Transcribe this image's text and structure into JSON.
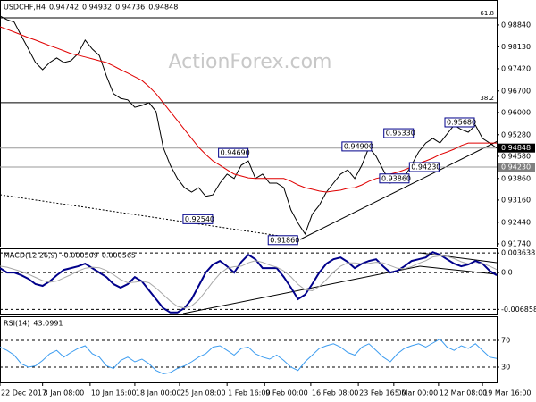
{
  "chart_data": [
    {
      "type": "line",
      "symbol": "USDCHF,H4",
      "header_values": [
        0.94742,
        0.94932,
        0.94736,
        0.94848
      ],
      "watermark": "ActionForex.com",
      "xlim": [
        0,
        70
      ],
      "ylim": [
        0.9168,
        0.9936
      ],
      "grid": false,
      "yticks": [
        {
          "value": 0.9884,
          "label": "0.98840"
        },
        {
          "value": 0.9813,
          "label": "0.98130"
        },
        {
          "value": 0.9742,
          "label": "0.97420"
        },
        {
          "value": 0.967,
          "label": "0.96700"
        },
        {
          "value": 0.96,
          "label": "0.96000"
        },
        {
          "value": 0.9528,
          "label": "0.95280"
        },
        {
          "value": 0.9458,
          "label": "0.94580"
        },
        {
          "value": 0.9386,
          "label": "0.93860"
        },
        {
          "value": 0.9316,
          "label": "0.93160"
        },
        {
          "value": 0.9244,
          "label": "0.92440"
        },
        {
          "value": 0.9174,
          "label": "0.91740"
        }
      ],
      "levels": [
        {
          "value": 0.9907,
          "label": "61.8"
        },
        {
          "value": 0.9632,
          "label": "38.2"
        }
      ],
      "price_markers": [
        {
          "value": 0.94848,
          "color": "#000000"
        },
        {
          "value": 0.9423,
          "label": "0.94230",
          "color": "#808080"
        }
      ],
      "annotations": [
        {
          "x": 25.8,
          "value": 0.9254,
          "label": "0.92540"
        },
        {
          "x": 30.8,
          "value": 0.9469,
          "label": "0.94690"
        },
        {
          "x": 37.8,
          "value": 0.9186,
          "label": "0.91860"
        },
        {
          "x": 48.2,
          "value": 0.949,
          "label": "0.94900"
        },
        {
          "x": 53.5,
          "value": 0.9386,
          "label": "0.93860"
        },
        {
          "x": 57.7,
          "value": 0.9423,
          "label": "0.94230"
        },
        {
          "x": 54.1,
          "value": 0.9533,
          "label": "0.95330"
        },
        {
          "x": 62.7,
          "value": 0.9568,
          "label": "0.95680"
        }
      ],
      "series": [
        {
          "color": "#000000",
          "width": 1,
          "values": [
            0.9913,
            0.9901,
            0.9893,
            0.9849,
            0.9806,
            0.9762,
            0.9739,
            0.9762,
            0.9777,
            0.9762,
            0.9768,
            0.9791,
            0.9835,
            0.9806,
            0.9785,
            0.9719,
            0.9661,
            0.9646,
            0.9641,
            0.9617,
            0.9623,
            0.9632,
            0.9603,
            0.9487,
            0.9429,
            0.9386,
            0.9356,
            0.9342,
            0.9356,
            0.9328,
            0.9333,
            0.9371,
            0.94,
            0.9386,
            0.9429,
            0.9443,
            0.9386,
            0.94,
            0.9371,
            0.9371,
            0.9356,
            0.9284,
            0.9241,
            0.9206,
            0.927,
            0.9299,
            0.9342,
            0.9371,
            0.94,
            0.9414,
            0.9386,
            0.9429,
            0.9487,
            0.9458,
            0.9414,
            0.9371,
            0.9386,
            0.9391,
            0.9429,
            0.9472,
            0.9501,
            0.9516,
            0.9501,
            0.953,
            0.9559,
            0.9545,
            0.9536,
            0.9559,
            0.9516,
            0.9501,
            0.9485
          ]
        },
        {
          "color": "#e00000",
          "width": 1,
          "values": [
            0.9878,
            0.987,
            0.9861,
            0.9852,
            0.9843,
            0.9835,
            0.9826,
            0.9817,
            0.9809,
            0.98,
            0.9791,
            0.9786,
            0.978,
            0.9774,
            0.9768,
            0.9762,
            0.9751,
            0.9739,
            0.9728,
            0.9716,
            0.9704,
            0.9684,
            0.9661,
            0.9632,
            0.9603,
            0.9574,
            0.9545,
            0.9516,
            0.9487,
            0.9464,
            0.9443,
            0.9429,
            0.9414,
            0.94,
            0.9394,
            0.9388,
            0.9386,
            0.9386,
            0.9386,
            0.9386,
            0.9386,
            0.9377,
            0.9365,
            0.9356,
            0.9351,
            0.9345,
            0.9342,
            0.9345,
            0.9348,
            0.9354,
            0.9356,
            0.9365,
            0.9377,
            0.9386,
            0.9391,
            0.94,
            0.9406,
            0.9414,
            0.9423,
            0.9435,
            0.9443,
            0.9452,
            0.9464,
            0.9472,
            0.9481,
            0.9493,
            0.9501,
            0.9501,
            0.9501,
            0.9501,
            0.9501
          ]
        }
      ]
    },
    {
      "type": "line",
      "label": "MACD(12,26,9)",
      "header_values": [
        -0.000509,
        0.000565
      ],
      "xlim": [
        0,
        70
      ],
      "ylim": [
        -0.0078,
        0.0045
      ],
      "grid": true,
      "yticks": [
        0.003638,
        {
          "value": 0,
          "label": "0.0"
        },
        -0.006858
      ],
      "series": [
        {
          "color": "#00008b",
          "width": 2,
          "values": [
            0.00083,
            0,
            0,
            -0.0005,
            -0.00116,
            -0.00215,
            -0.00248,
            -0.00165,
            -0.0005,
            0.0005,
            0.00083,
            0.00116,
            0.00165,
            0.00083,
            0,
            -0.00083,
            -0.00215,
            -0.00281,
            -0.00215,
            -0.00083,
            -0.00165,
            -0.00331,
            -0.00496,
            -0.00662,
            -0.00744,
            -0.00744,
            -0.00662,
            -0.00496,
            -0.00248,
            0,
            0.00149,
            0.00215,
            0.00116,
            0,
            0.00198,
            0.00331,
            0.00248,
            0.00083,
            0.00083,
            0.00083,
            -0.00083,
            -0.00281,
            -0.00496,
            -0.00413,
            -0.00215,
            0,
            0.00165,
            0.00248,
            0.00281,
            0.00198,
            0.00083,
            0.00165,
            0.00215,
            0.00248,
            0.00116,
            0,
            0.00033,
            0.00116,
            0.00215,
            0.00248,
            0.00281,
            0.0038,
            0.00331,
            0.00248,
            0.00165,
            0.00116,
            0.00149,
            0.00215,
            0.00165,
            0.00033,
            -0.000509
          ]
        },
        {
          "color": "#a8a8a8",
          "width": 1,
          "values": [
            0.0012,
            0.001,
            0.0006,
            0.0002,
            -0.0003,
            -0.0009,
            -0.0015,
            -0.0018,
            -0.0016,
            -0.001,
            -0.0004,
            0.0003,
            0.0008,
            0.001,
            0.0009,
            0.0004,
            -0.0004,
            -0.0013,
            -0.0019,
            -0.0018,
            -0.0016,
            -0.0019,
            -0.0029,
            -0.0041,
            -0.0053,
            -0.0063,
            -0.0066,
            -0.0062,
            -0.0051,
            -0.0035,
            -0.0017,
            -0.0002,
            0.0008,
            0.0011,
            0.0012,
            0.0018,
            0.0022,
            0.0019,
            0.0014,
            0.001,
            0.0003,
            -0.0008,
            -0.0022,
            -0.0032,
            -0.0034,
            -0.0026,
            -0.0013,
            0.0001,
            0.0012,
            0.0018,
            0.0018,
            0.0016,
            0.0017,
            0.0019,
            0.0018,
            0.0013,
            0.0008,
            0.0007,
            0.0011,
            0.0017,
            0.0022,
            0.0029,
            0.0031,
            0.003,
            0.0026,
            0.002,
            0.0016,
            0.0016,
            0.0017,
            0.0012,
            0.000565
          ]
        }
      ]
    },
    {
      "type": "line",
      "label": "RSI(14)",
      "header_values": [
        43.0991
      ],
      "xlim": [
        0,
        70
      ],
      "ylim": [
        7.3,
        104.7
      ],
      "grid": true,
      "yticks": [
        70,
        30
      ],
      "xticks": [
        {
          "value": 0,
          "label": "22 Dec 2017"
        },
        {
          "value": 6,
          "label": "3 Jan 08:00"
        },
        {
          "value": 12.7,
          "label": "10 Jan 16:00"
        },
        {
          "value": 19,
          "label": "18 Jan 00:00"
        },
        {
          "value": 25.3,
          "label": "25 Jan 08:00"
        },
        {
          "value": 32,
          "label": "1 Feb 16:00"
        },
        {
          "value": 37.3,
          "label": "9 Feb 00:00"
        },
        {
          "value": 43.8,
          "label": "16 Feb 08:00"
        },
        {
          "value": 50.5,
          "label": "23 Feb 16:00"
        },
        {
          "value": 55.5,
          "label": "5 Mar 00:00"
        },
        {
          "value": 61.8,
          "label": "12 Mar 08:00"
        },
        {
          "value": 68,
          "label": "19 Mar 16:00"
        }
      ],
      "series": [
        {
          "color": "#3c9cf0",
          "width": 1,
          "values": [
            60,
            55,
            48,
            35,
            30,
            32,
            40,
            50,
            55,
            45,
            52,
            58,
            62,
            50,
            45,
            32,
            28,
            40,
            45,
            38,
            42,
            35,
            25,
            20,
            22,
            28,
            32,
            38,
            45,
            50,
            60,
            62,
            55,
            48,
            58,
            60,
            50,
            45,
            42,
            48,
            40,
            30,
            25,
            38,
            48,
            58,
            62,
            65,
            60,
            52,
            48,
            60,
            65,
            55,
            45,
            38,
            50,
            58,
            62,
            65,
            60,
            66,
            72,
            60,
            55,
            62,
            58,
            65,
            55,
            45,
            43.0991
          ]
        }
      ]
    }
  ]
}
